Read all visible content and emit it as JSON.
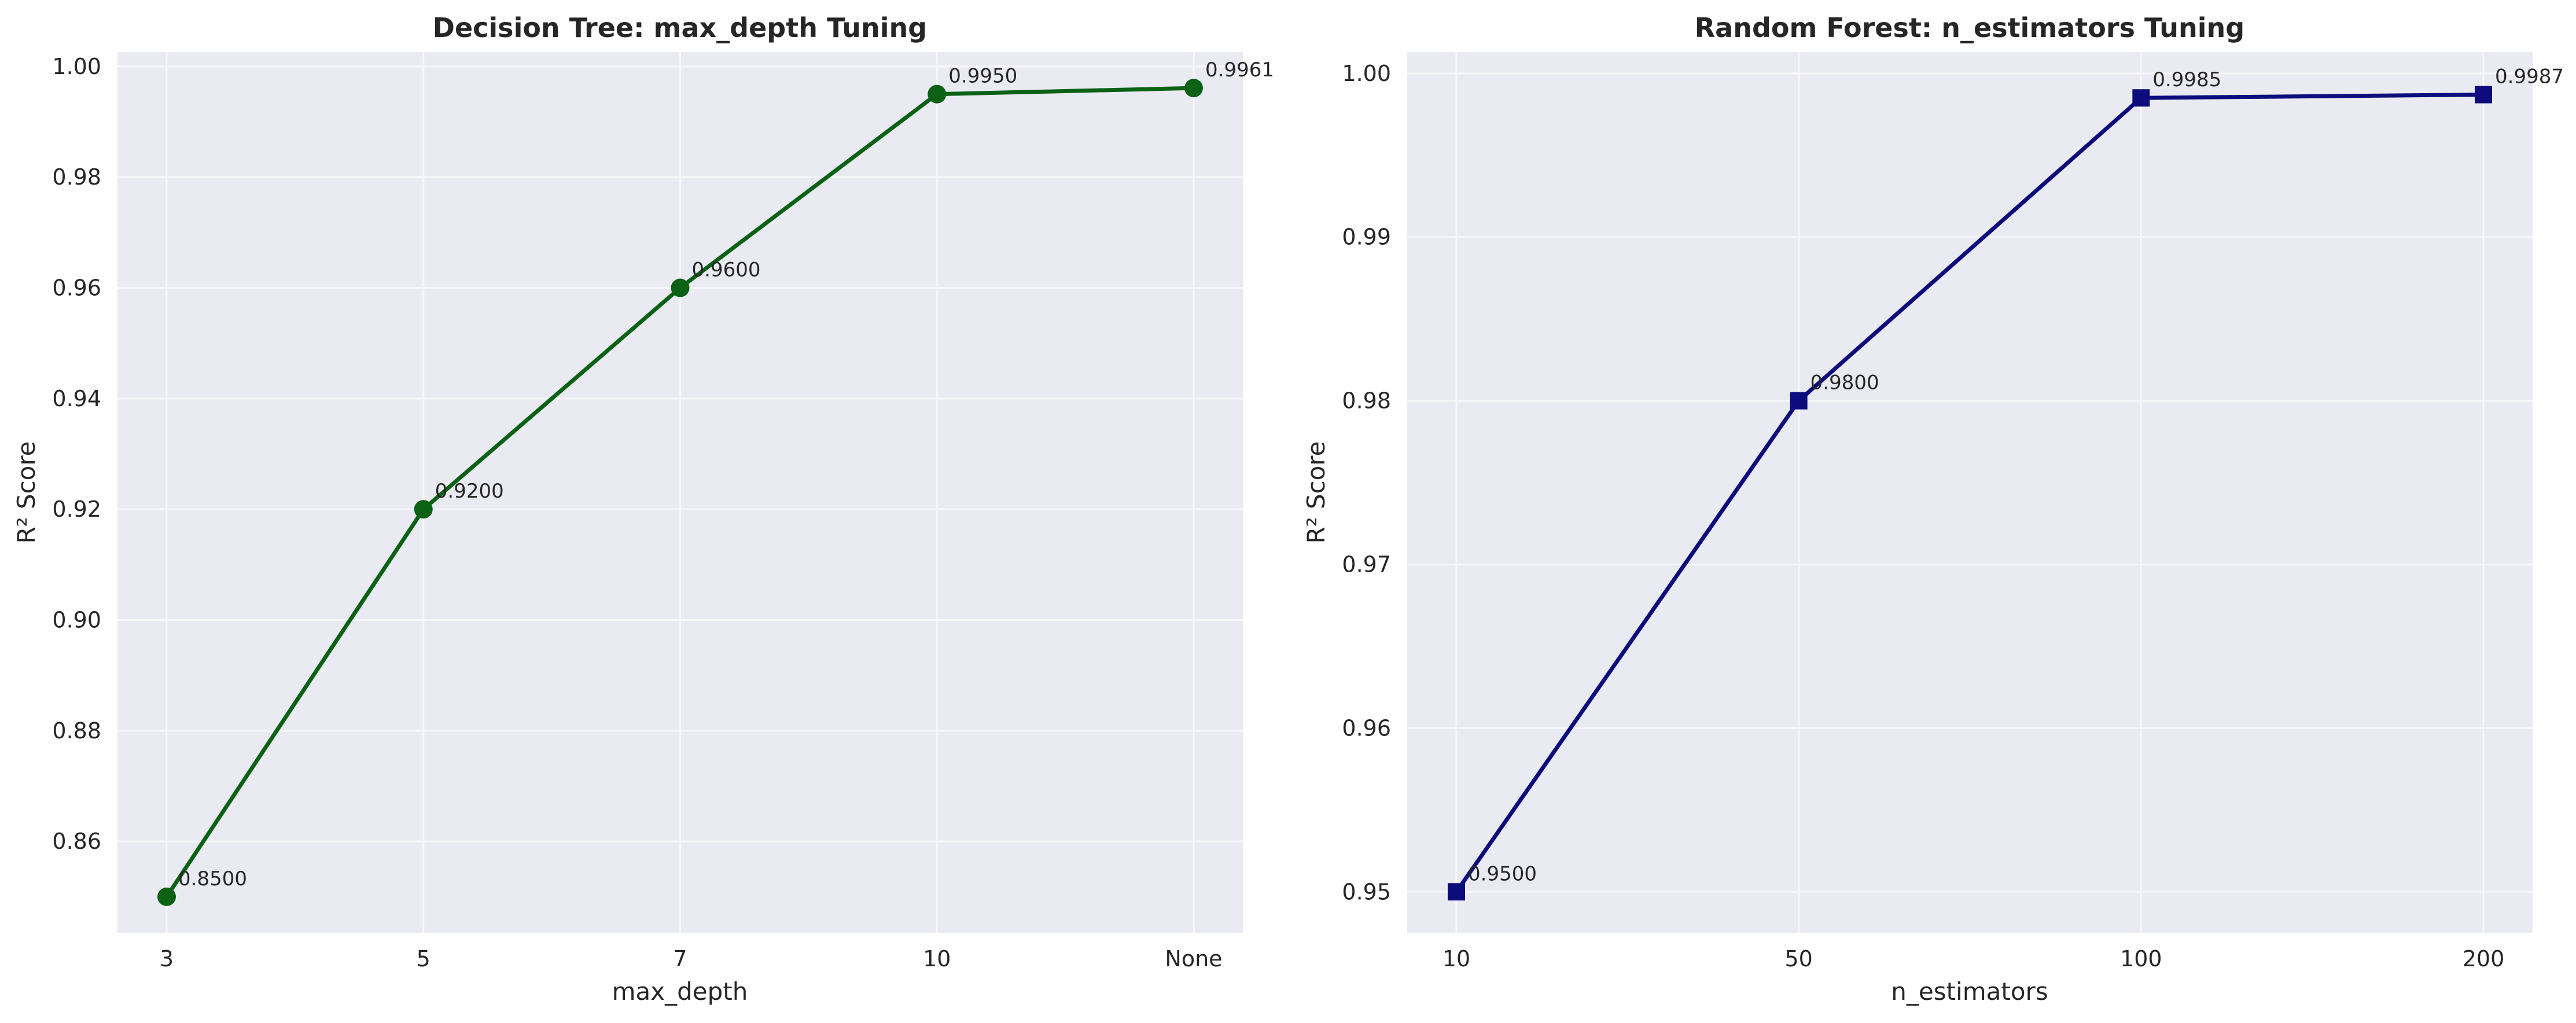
{
  "chart_data": [
    {
      "type": "line",
      "title": "Decision Tree: max_depth Tuning",
      "xlabel": "max_depth",
      "ylabel": "R² Score",
      "categories": [
        "3",
        "5",
        "7",
        "10",
        "None"
      ],
      "series": [
        {
          "values": [
            0.85,
            0.92,
            0.96,
            0.995,
            0.9961
          ],
          "color": "#0b6114",
          "marker": "circle"
        }
      ],
      "data_labels": [
        "0.8500",
        "0.9200",
        "0.9600",
        "0.9950",
        "0.9961"
      ],
      "ylim": [
        0.8435,
        1.0026
      ],
      "yticks": [
        0.86,
        0.88,
        0.9,
        0.92,
        0.94,
        0.96,
        0.98,
        1.0
      ],
      "ytick_labels": [
        "0.86",
        "0.88",
        "0.90",
        "0.92",
        "0.94",
        "0.96",
        "0.98",
        "1.00"
      ],
      "grid": true,
      "background": "#eaeaf2"
    },
    {
      "type": "line",
      "title": "Random Forest: n_estimators Tuning",
      "xlabel": "n_estimators",
      "ylabel": "R² Score",
      "categories": [
        "10",
        "50",
        "100",
        "200"
      ],
      "series": [
        {
          "values": [
            0.95,
            0.98,
            0.9985,
            0.9987
          ],
          "color": "#0c0c7c",
          "marker": "square"
        }
      ],
      "data_labels": [
        "0.9500",
        "0.9800",
        "0.9985",
        "0.9987"
      ],
      "ylim": [
        0.9475,
        1.0013
      ],
      "yticks": [
        0.95,
        0.96,
        0.97,
        0.98,
        0.99,
        1.0
      ],
      "ytick_labels": [
        "0.95",
        "0.96",
        "0.97",
        "0.98",
        "0.99",
        "1.00"
      ],
      "grid": true,
      "background": "#eaeaf2"
    }
  ]
}
